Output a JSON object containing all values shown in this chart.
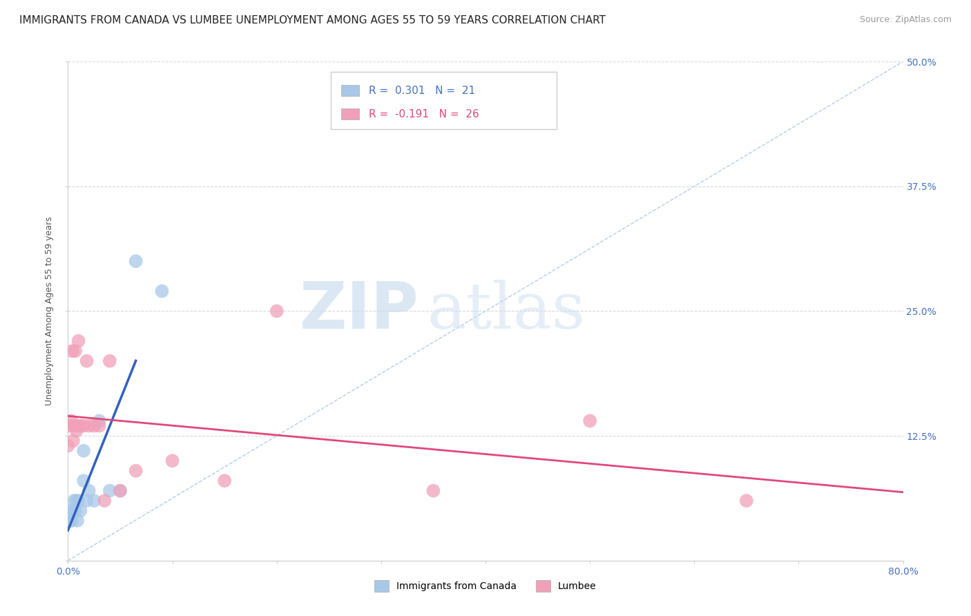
{
  "title": "IMMIGRANTS FROM CANADA VS LUMBEE UNEMPLOYMENT AMONG AGES 55 TO 59 YEARS CORRELATION CHART",
  "source": "Source: ZipAtlas.com",
  "ylabel": "Unemployment Among Ages 55 to 59 years",
  "xlim": [
    0.0,
    0.8
  ],
  "ylim": [
    0.0,
    0.5
  ],
  "xticks": [
    0.0,
    0.1,
    0.2,
    0.3,
    0.4,
    0.5,
    0.6,
    0.7,
    0.8
  ],
  "yticks": [
    0.0,
    0.125,
    0.25,
    0.375,
    0.5
  ],
  "xticklabels_show": [
    "0.0%",
    "80.0%"
  ],
  "yticklabels": [
    "",
    "12.5%",
    "25.0%",
    "37.5%",
    "50.0%"
  ],
  "canada_R": 0.301,
  "canada_N": 21,
  "lumbee_R": -0.191,
  "lumbee_N": 26,
  "canada_color": "#a8c8e8",
  "lumbee_color": "#f0a0b8",
  "canada_line_color": "#3060c0",
  "lumbee_line_color": "#e04878",
  "diagonal_color": "#a0c0e8",
  "watermark_zip": "ZIP",
  "watermark_atlas": "atlas",
  "canada_points_x": [
    0.0,
    0.002,
    0.003,
    0.004,
    0.005,
    0.006,
    0.007,
    0.008,
    0.009,
    0.01,
    0.012,
    0.015,
    0.015,
    0.018,
    0.02,
    0.025,
    0.03,
    0.04,
    0.05,
    0.065,
    0.09
  ],
  "canada_points_y": [
    0.04,
    0.04,
    0.05,
    0.04,
    0.05,
    0.06,
    0.05,
    0.06,
    0.04,
    0.06,
    0.05,
    0.08,
    0.11,
    0.06,
    0.07,
    0.06,
    0.14,
    0.07,
    0.07,
    0.3,
    0.27
  ],
  "lumbee_points_x": [
    0.0,
    0.0,
    0.003,
    0.004,
    0.005,
    0.006,
    0.007,
    0.008,
    0.01,
    0.01,
    0.012,
    0.015,
    0.018,
    0.02,
    0.025,
    0.03,
    0.035,
    0.04,
    0.05,
    0.065,
    0.1,
    0.15,
    0.2,
    0.35,
    0.5,
    0.65
  ],
  "lumbee_points_y": [
    0.135,
    0.115,
    0.14,
    0.21,
    0.12,
    0.135,
    0.21,
    0.13,
    0.135,
    0.22,
    0.135,
    0.135,
    0.2,
    0.135,
    0.135,
    0.135,
    0.06,
    0.2,
    0.07,
    0.09,
    0.1,
    0.08,
    0.25,
    0.07,
    0.14,
    0.06
  ],
  "background_color": "#ffffff",
  "grid_color": "#d8d8d8",
  "title_fontsize": 11,
  "tick_fontsize": 10,
  "legend_fontsize": 11
}
